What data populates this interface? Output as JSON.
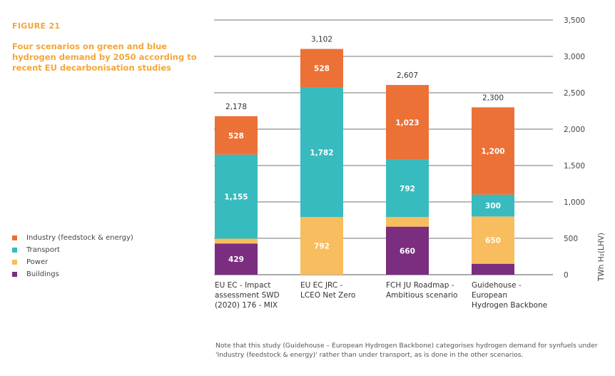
{
  "figure": {
    "label": "FIGURE 21",
    "title": "Four scenarios on green and blue hydrogen demand by 2050 according to recent EU decarbonisation studies",
    "note": "Note that this study (Guidehouse – European Hydrogen Backbone) categorises hydrogen demand for synfuels under 'Industry (feedstock & energy)' rather than under transport, as is done in the other scenarios."
  },
  "chart_data": {
    "type": "bar",
    "stacked": true,
    "categories": [
      [
        "EU EC - Impact",
        "assessment SWD",
        "(2020) 176 - MIX"
      ],
      [
        "EU EC JRC -",
        "LCEO Net Zero"
      ],
      [
        "FCH JU Roadmap -",
        "Ambitious scenario"
      ],
      [
        "Guidehouse -",
        "European",
        "Hydrogen Backbone"
      ]
    ],
    "series": [
      {
        "name": "Buildings",
        "color": "#7b2d7f",
        "values": [
          429,
          0,
          660,
          150
        ],
        "labels": [
          "429",
          "",
          "660",
          ""
        ]
      },
      {
        "name": "Power",
        "color": "#f7bd5e",
        "values": [
          66,
          792,
          132,
          650
        ],
        "labels": [
          "",
          "792",
          "",
          "650"
        ]
      },
      {
        "name": "Transport",
        "color": "#37bbbf",
        "values": [
          1155,
          1782,
          792,
          300
        ],
        "labels": [
          "1,155",
          "1,782",
          "792",
          "300"
        ]
      },
      {
        "name": "Industry (feedstock & energy)",
        "color": "#ec7137",
        "values": [
          528,
          528,
          1023,
          1200
        ],
        "labels": [
          "528",
          "528",
          "1,023",
          "1,200"
        ]
      }
    ],
    "totals": [
      "2,178",
      "3,102",
      "2,607",
      "2,300"
    ],
    "ylim": [
      0,
      3500
    ],
    "yticks": [
      "0",
      "500",
      "1,000",
      "1,500",
      "2,000",
      "2,500",
      "3,000",
      "3,500"
    ],
    "ylabel": "TWh H₂(LHV)",
    "yaxis_side": "right",
    "grid": true,
    "legend_position": "left",
    "legend_order": [
      "Industry (feedstock & energy)",
      "Transport",
      "Power",
      "Buildings"
    ]
  }
}
